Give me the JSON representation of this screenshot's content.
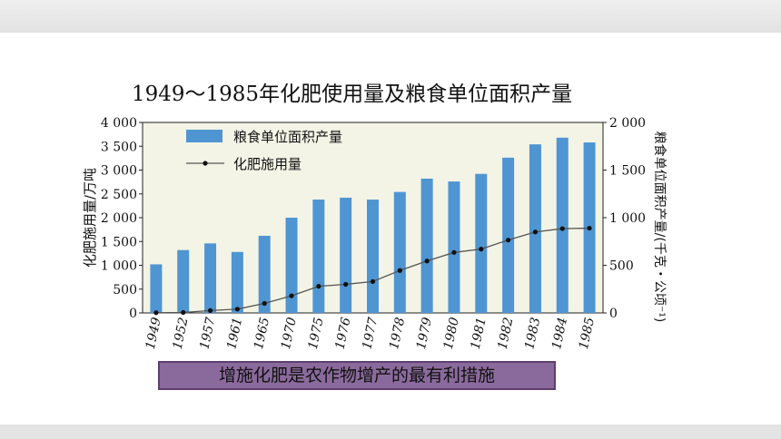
{
  "chart_data": {
    "type": "bar",
    "title": "1949～1985年化肥使用量及粮食单位面积产量",
    "categories": [
      "1949",
      "1952",
      "1957",
      "1961",
      "1965",
      "1970",
      "1975",
      "1976",
      "1977",
      "1978",
      "1979",
      "1980",
      "1981",
      "1982",
      "1983",
      "1984",
      "1985"
    ],
    "ylabel_left": "化肥施用量/万吨",
    "ylabel_right": "粮食单位面积产量/(千克・公顷⁻¹)",
    "ylim_left": [
      0,
      4000
    ],
    "ylim_right": [
      0,
      2000
    ],
    "yticks_left": [
      "0",
      "500",
      "1 000",
      "1 500",
      "2 000",
      "2 500",
      "3 000",
      "3 500",
      "4 000"
    ],
    "yticks_right": [
      "0",
      "500",
      "1 000",
      "1 500",
      "2 000"
    ],
    "series": [
      {
        "name": "粮食单位面积产量",
        "type": "bar",
        "axis": "right",
        "values": [
          510,
          660,
          730,
          640,
          810,
          1000,
          1190,
          1210,
          1190,
          1270,
          1410,
          1380,
          1460,
          1630,
          1770,
          1840,
          1790
        ]
      },
      {
        "name": "化肥施用量",
        "type": "line",
        "axis": "left",
        "values": [
          5,
          10,
          50,
          80,
          200,
          360,
          560,
          600,
          660,
          890,
          1090,
          1270,
          1340,
          1530,
          1700,
          1770,
          1780
        ]
      }
    ],
    "legend_position": "top-left",
    "colors": {
      "bars": "#4f95d2",
      "line": "#555555",
      "plot_bg": "#f3f4e6"
    }
  },
  "callout": {
    "text": "增施化肥是农作物增产的最有利措施"
  }
}
